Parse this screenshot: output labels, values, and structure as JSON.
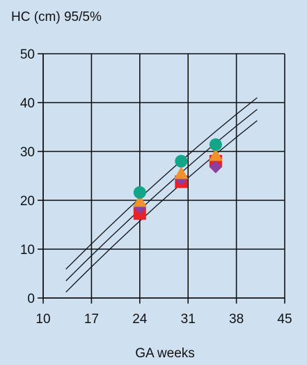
{
  "chart_data": {
    "type": "scatter",
    "title": "HC (cm) 95/5%",
    "xlabel": "GA weeks",
    "ylabel": "",
    "xlim": [
      10,
      45
    ],
    "ylim": [
      0,
      50
    ],
    "x_ticks": [
      10,
      17,
      24,
      31,
      38,
      45
    ],
    "y_ticks": [
      0,
      10,
      20,
      30,
      40,
      50
    ],
    "grid": true,
    "reference_lines": [
      {
        "name": "",
        "x": [
          13.3,
          41
        ],
        "y": [
          5.9,
          41
        ]
      },
      {
        "name": "",
        "x": [
          13.3,
          41
        ],
        "y": [
          3.5,
          38.6
        ]
      },
      {
        "name": "",
        "x": [
          13.3,
          41
        ],
        "y": [
          1.2,
          36.3
        ]
      }
    ],
    "series": [
      {
        "name": "",
        "marker": "circle",
        "color": "#13a58a",
        "x": [
          24,
          30,
          35
        ],
        "y": [
          21.6,
          28,
          31.4
        ]
      },
      {
        "name": "",
        "marker": "triangle",
        "color": "#f0922a",
        "x": [
          24,
          30,
          35
        ],
        "y": [
          19.8,
          25.5,
          29.2
        ]
      },
      {
        "name": "",
        "marker": "diamond",
        "color": "#8b3fa0",
        "x": [
          24,
          30,
          35
        ],
        "y": [
          18.5,
          24.3,
          26.8
        ]
      },
      {
        "name": "",
        "marker": "square",
        "color": "#e8222a",
        "x": [
          24,
          30,
          35
        ],
        "y": [
          17.3,
          23.8,
          28
        ]
      }
    ]
  }
}
